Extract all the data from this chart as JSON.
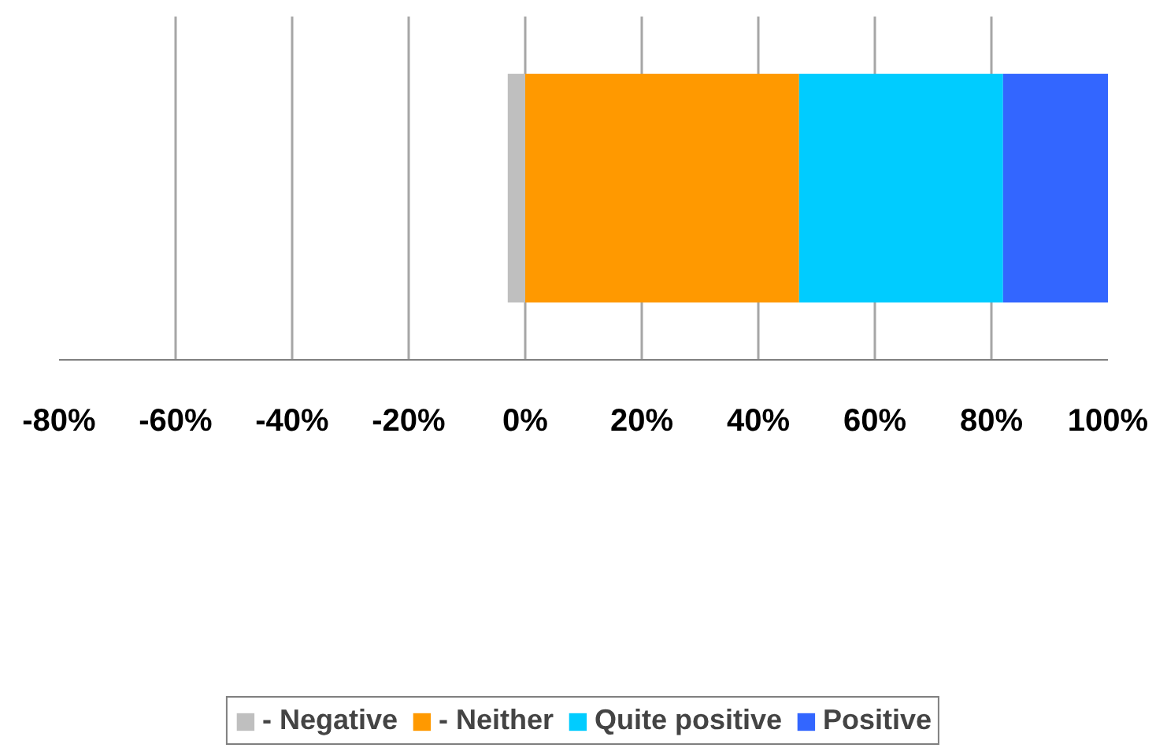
{
  "chart_data": {
    "type": "bar",
    "orientation": "horizontal",
    "stacked": true,
    "categories": [
      null
    ],
    "series": [
      {
        "name": "- Negative",
        "color": "#bfbfbf",
        "values": [
          -3
        ]
      },
      {
        "name": "- Neither",
        "color": "#ff9900",
        "values": [
          47
        ]
      },
      {
        "name": "Quite positive",
        "color": "#00ccff",
        "values": [
          35
        ]
      },
      {
        "name": "Positive",
        "color": "#3366ff",
        "values": [
          18
        ]
      }
    ],
    "xlim": [
      -80,
      100
    ],
    "xticks": [
      {
        "value": -80,
        "label": "-80%"
      },
      {
        "value": -60,
        "label": "-60%"
      },
      {
        "value": -40,
        "label": "-40%"
      },
      {
        "value": -20,
        "label": "-20%"
      },
      {
        "value": 0,
        "label": "0%"
      },
      {
        "value": 20,
        "label": "20%"
      },
      {
        "value": 40,
        "label": "40%"
      },
      {
        "value": 60,
        "label": "60%"
      },
      {
        "value": 80,
        "label": "80%"
      },
      {
        "value": 100,
        "label": "100%"
      }
    ],
    "grid": "x",
    "legend": "bottom",
    "tick_labels": "x"
  }
}
